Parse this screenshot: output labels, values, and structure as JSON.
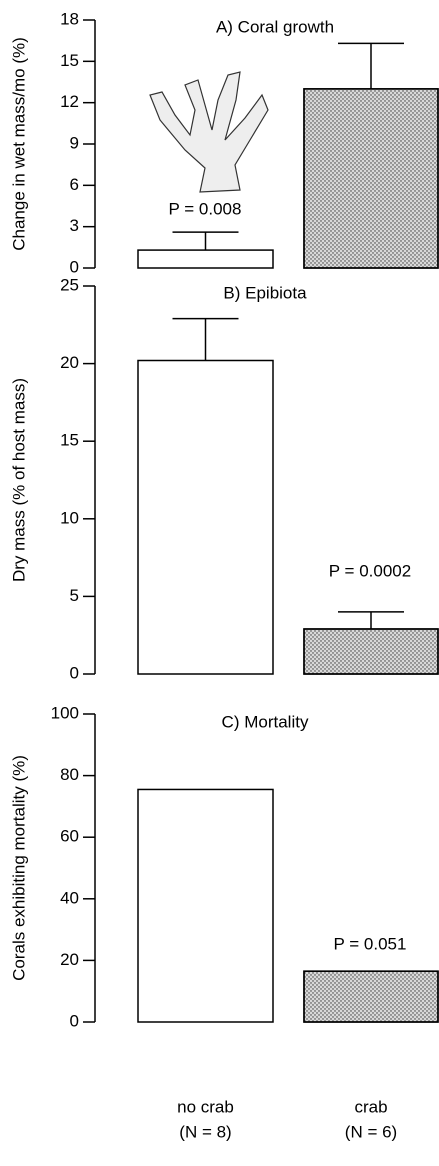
{
  "chart_data": [
    {
      "type": "bar",
      "title": "A) Coral growth",
      "ylabel": "Change in wet mass/mo (%)",
      "values": [
        1.3,
        13.0
      ],
      "errors": [
        1.3,
        3.3
      ],
      "colors": [
        "#ffffff",
        "#d9d9d9"
      ],
      "ylim": [
        0,
        18
      ],
      "yticks": [
        0,
        3,
        6,
        9,
        12,
        15,
        18
      ],
      "annotation": "P = 0.008"
    },
    {
      "type": "bar",
      "title": "B) Epibiota",
      "ylabel": "Dry mass (% of host mass)",
      "values": [
        20.2,
        2.9
      ],
      "errors": [
        2.7,
        1.1
      ],
      "colors": [
        "#ffffff",
        "#d9d9d9"
      ],
      "ylim": [
        0,
        25
      ],
      "yticks": [
        0,
        5,
        10,
        15,
        20,
        25
      ],
      "annotation": "P = 0.0002"
    },
    {
      "type": "bar",
      "title": "C) Mortality",
      "ylabel": "Corals exhibiting mortality (%)",
      "values": [
        75.5,
        16.5
      ],
      "colors": [
        "#ffffff",
        "#d9d9d9"
      ],
      "ylim": [
        0,
        100
      ],
      "yticks": [
        0,
        20,
        40,
        60,
        80,
        100
      ],
      "annotation": "P = 0.051",
      "categories": [
        "no crab",
        "crab"
      ],
      "sample_sizes": [
        "(N = 8)",
        "(N = 6)"
      ]
    }
  ]
}
